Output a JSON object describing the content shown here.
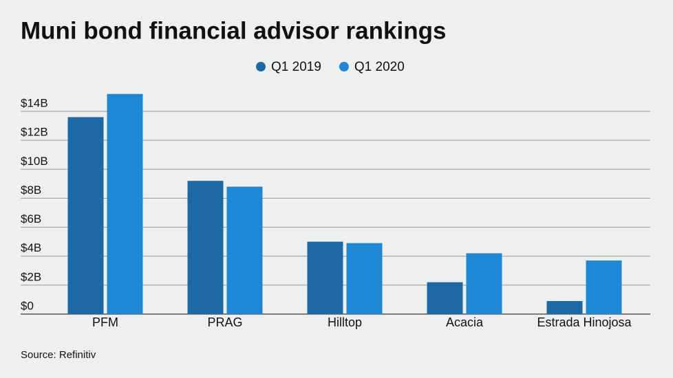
{
  "chart_data": {
    "type": "bar",
    "title": "Muni bond financial advisor rankings",
    "categories": [
      "PFM",
      "PRAG",
      "Hilltop",
      "Acacia",
      "Estrada Hinojosa"
    ],
    "series": [
      {
        "name": "Q1 2019",
        "color": "#1d69a6",
        "values": [
          13.6,
          9.2,
          5.0,
          2.2,
          0.9
        ]
      },
      {
        "name": "Q1 2020",
        "color": "#1f88d6",
        "values": [
          15.2,
          8.8,
          4.9,
          4.2,
          3.7
        ]
      }
    ],
    "ylim": [
      0,
      15.5
    ],
    "yticks": [
      {
        "value": 0,
        "label": "$0"
      },
      {
        "value": 2,
        "label": "$2B"
      },
      {
        "value": 4,
        "label": "$4B"
      },
      {
        "value": 6,
        "label": "$6B"
      },
      {
        "value": 8,
        "label": "$8B"
      },
      {
        "value": 10,
        "label": "$10B"
      },
      {
        "value": 12,
        "label": "$12B"
      },
      {
        "value": 14,
        "label": "$14B"
      }
    ],
    "grid": true,
    "source": "Source: Refinitiv"
  }
}
